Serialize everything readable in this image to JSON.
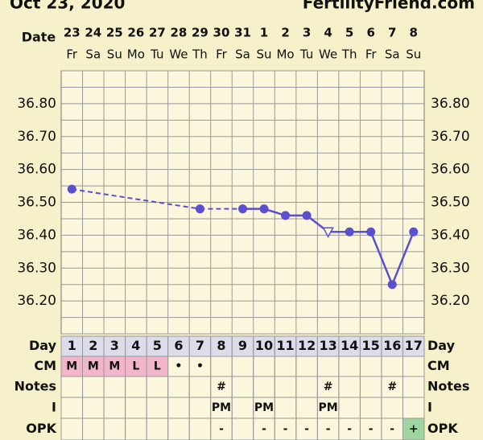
{
  "header": {
    "date": "Oct 23, 2020",
    "site": "FertilityFriend.com"
  },
  "chart_data": {
    "type": "line",
    "date_label": "Date",
    "categories": [
      "23",
      "24",
      "25",
      "26",
      "27",
      "28",
      "29",
      "30",
      "31",
      "1",
      "2",
      "3",
      "4",
      "5",
      "6",
      "7",
      "8"
    ],
    "weekdays": [
      "Fr",
      "Sa",
      "Su",
      "Mo",
      "Tu",
      "We",
      "Th",
      "Fr",
      "Sa",
      "Su",
      "Mo",
      "Tu",
      "We",
      "Th",
      "Fr",
      "Sa",
      "Su"
    ],
    "series": [
      {
        "color": "#5a4fcf",
        "values": [
          36.54,
          null,
          null,
          null,
          null,
          null,
          36.48,
          null,
          36.48,
          36.48,
          36.46,
          36.46,
          36.41,
          36.41,
          36.41,
          36.25,
          36.41
        ],
        "markers": [
          "circle",
          null,
          null,
          null,
          null,
          null,
          "circle",
          null,
          "circle",
          "circle",
          "circle",
          "circle",
          "triangle-open",
          "circle",
          "circle",
          "circle",
          "circle"
        ]
      }
    ],
    "ylim": [
      36.1,
      36.9
    ],
    "yticks": [
      {
        "value": 36.2,
        "label": "36.20"
      },
      {
        "value": 36.3,
        "label": "36.30"
      },
      {
        "value": 36.4,
        "label": "36.40"
      },
      {
        "value": 36.5,
        "label": "36.50"
      },
      {
        "value": 36.6,
        "label": "36.60"
      },
      {
        "value": 36.7,
        "label": "36.70"
      },
      {
        "value": 36.8,
        "label": "36.80"
      }
    ],
    "grid": true
  },
  "table": {
    "rows": [
      {
        "label": "Day",
        "cells": [
          1,
          2,
          3,
          4,
          5,
          6,
          7,
          8,
          9,
          10,
          11,
          12,
          13,
          14,
          15,
          16,
          17
        ]
      },
      {
        "label": "CM",
        "cells": [
          "M",
          "M",
          "M",
          "L",
          "L",
          "•",
          "•",
          null,
          null,
          null,
          null,
          null,
          null,
          null,
          null,
          null,
          null
        ],
        "cell_colors": [
          "#f2b6cc",
          "#f2b6cc",
          "#f2b6cc",
          "#f2b6cc",
          "#f2b6cc",
          null,
          null,
          null,
          null,
          null,
          null,
          null,
          null,
          null,
          null,
          null,
          null
        ]
      },
      {
        "label": "Notes",
        "cells": [
          null,
          null,
          null,
          null,
          null,
          null,
          null,
          "#",
          null,
          null,
          null,
          null,
          "#",
          null,
          null,
          "#",
          null
        ]
      },
      {
        "label": "I",
        "cells": [
          null,
          null,
          null,
          null,
          null,
          null,
          null,
          "PM",
          null,
          "PM",
          null,
          null,
          "PM",
          null,
          null,
          null,
          null
        ]
      },
      {
        "label": "OPK",
        "cells": [
          null,
          null,
          null,
          null,
          null,
          null,
          null,
          "-",
          null,
          "-",
          "-",
          "-",
          "-",
          "-",
          "-",
          "-",
          "+"
        ],
        "cell_colors": [
          null,
          null,
          null,
          null,
          null,
          null,
          null,
          null,
          null,
          null,
          null,
          null,
          null,
          null,
          null,
          null,
          "#9fd69f"
        ]
      }
    ]
  }
}
